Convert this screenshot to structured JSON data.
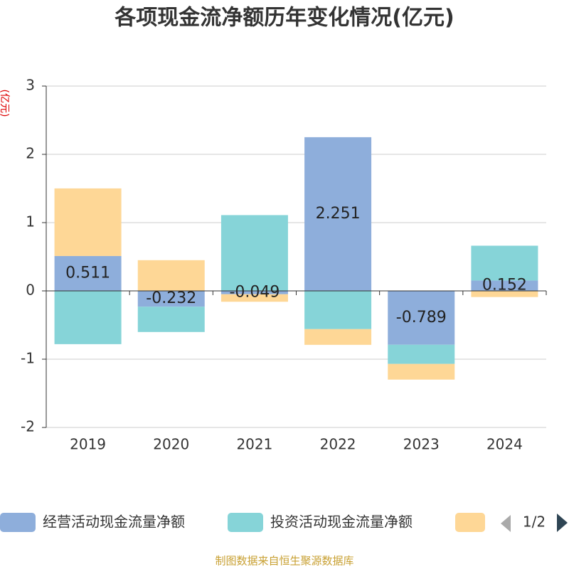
{
  "chart_data": {
    "type": "bar",
    "stacked": true,
    "title": "各项现金流净额历年变化情况(亿元)",
    "y_label": "(亿元)",
    "categories": [
      "2019",
      "2020",
      "2021",
      "2022",
      "2023",
      "2024"
    ],
    "series": [
      {
        "name": "经营活动现金流量净额",
        "color": "#8eaedb",
        "values": [
          0.511,
          -0.232,
          -0.049,
          2.251,
          -0.789,
          0.152
        ],
        "show_labels": true
      },
      {
        "name": "投资活动现金流量净额",
        "color": "#86d4d8",
        "values": [
          -0.78,
          -0.37,
          1.11,
          -0.56,
          -0.28,
          0.51
        ]
      },
      {
        "color": "#fed796",
        "values": [
          0.99,
          0.45,
          -0.11,
          -0.23,
          -0.23,
          -0.09
        ]
      }
    ],
    "ylim": [
      -2,
      3
    ],
    "yticks": [
      -2,
      -1,
      0,
      1,
      2,
      3
    ],
    "grid": true,
    "legend_page": "1/2",
    "source": "制图数据来自恒生聚源数据库"
  }
}
